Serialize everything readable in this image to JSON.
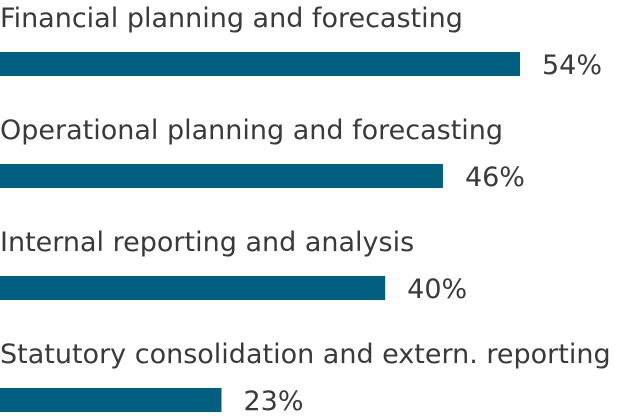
{
  "chart_data": {
    "type": "bar",
    "orientation": "horizontal",
    "categories": [
      "Financial planning and forecasting",
      "Operational planning and forecasting",
      "Internal reporting and analysis",
      "Statutory consolidation and extern. reporting"
    ],
    "values": [
      54,
      46,
      40,
      23
    ],
    "value_labels": [
      "54%",
      "46%",
      "40%",
      "23%"
    ],
    "unit": "%",
    "xlim": [
      0,
      100
    ],
    "grid": false,
    "legend": "none",
    "bar_color": "#005f7f"
  }
}
